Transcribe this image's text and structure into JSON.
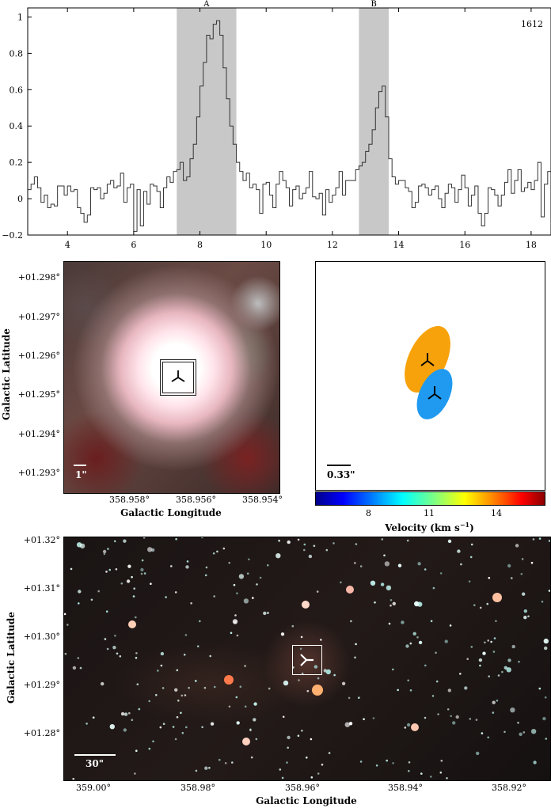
{
  "spectrum": {
    "corner_label": "1612",
    "regions": [
      {
        "label": "A",
        "x0": 7.3,
        "x1": 9.1
      },
      {
        "label": "B",
        "x0": 12.8,
        "x1": 13.7
      }
    ],
    "xlim": [
      2.8,
      18.6
    ],
    "ylim": [
      -0.2,
      1.05
    ],
    "x_ticks": [
      "4",
      "6",
      "8",
      "10",
      "12",
      "14",
      "16",
      "18"
    ],
    "y_ticks": [
      "1",
      "0.8",
      "0.6",
      "0.4",
      "0.2",
      "0",
      "−0.2"
    ]
  },
  "chart_data": {
    "type": "line",
    "series": [
      {
        "x": [
          2.8,
          2.9,
          3.0,
          3.1,
          3.2,
          3.3,
          3.4,
          3.5,
          3.6,
          3.7,
          3.8,
          3.9,
          4.0,
          4.1,
          4.2,
          4.3,
          4.4,
          4.5,
          4.6,
          4.7,
          4.8,
          4.9,
          5.0,
          5.1,
          5.2,
          5.3,
          5.4,
          5.5,
          5.6,
          5.7,
          5.8,
          5.9,
          6.0,
          6.1,
          6.2,
          6.3,
          6.4,
          6.5,
          6.6,
          6.7,
          6.8,
          6.9,
          7.0,
          7.1,
          7.2,
          7.3,
          7.4,
          7.5,
          7.6,
          7.7,
          7.8,
          7.9,
          8.0,
          8.1,
          8.2,
          8.3,
          8.4,
          8.5,
          8.6,
          8.7,
          8.8,
          8.9,
          9.0,
          9.1,
          9.2,
          9.3,
          9.4,
          9.5,
          9.6,
          9.7,
          9.8,
          9.9,
          10.0,
          10.1,
          10.2,
          10.3,
          10.4,
          10.5,
          10.6,
          10.7,
          10.8,
          10.9,
          11.0,
          11.1,
          11.2,
          11.3,
          11.4,
          11.5,
          11.6,
          11.7,
          11.8,
          11.9,
          12.0,
          12.1,
          12.2,
          12.3,
          12.4,
          12.5,
          12.6,
          12.7,
          12.8,
          12.9,
          13.0,
          13.1,
          13.2,
          13.3,
          13.4,
          13.5,
          13.6,
          13.7,
          13.8,
          13.9,
          14.0,
          14.1,
          14.2,
          14.3,
          14.4,
          14.5,
          14.6,
          14.7,
          14.8,
          14.9,
          15.0,
          15.1,
          15.2,
          15.3,
          15.4,
          15.5,
          15.6,
          15.7,
          15.8,
          15.9,
          16.0,
          16.1,
          16.2,
          16.3,
          16.4,
          16.5,
          16.6,
          16.7,
          16.8,
          16.9,
          17.0,
          17.1,
          17.2,
          17.3,
          17.4,
          17.5,
          17.6,
          17.7,
          17.8,
          17.9,
          18.0,
          18.1,
          18.2,
          18.3,
          18.4,
          18.5
        ],
        "y": [
          0.05,
          0.08,
          0.12,
          0.06,
          -0.02,
          0.02,
          -0.05,
          -0.03,
          -0.04,
          0.07,
          0.07,
          0.02,
          0.07,
          0.04,
          0.05,
          -0.05,
          -0.08,
          -0.13,
          -0.09,
          0.06,
          0.05,
          0.06,
          0.0,
          0.03,
          0.08,
          0.1,
          0.06,
          0.07,
          0.14,
          -0.02,
          0.06,
          0.08,
          -0.18,
          0.05,
          -0.15,
          0.04,
          -0.03,
          0.08,
          0.07,
          0.04,
          -0.05,
          0.06,
          0.12,
          0.09,
          0.15,
          0.16,
          0.2,
          0.1,
          0.12,
          0.22,
          0.3,
          0.45,
          0.62,
          0.75,
          0.9,
          0.88,
          0.96,
          0.98,
          0.9,
          0.72,
          0.55,
          0.4,
          0.3,
          0.2,
          0.15,
          0.1,
          0.14,
          0.06,
          0.08,
          0.05,
          -0.08,
          0.08,
          0.09,
          0.02,
          -0.05,
          0.08,
          0.15,
          0.1,
          0.06,
          -0.04,
          0.05,
          0.07,
          0.0,
          0.03,
          0.06,
          0.15,
          0.01,
          0.0,
          0.03,
          -0.09,
          0.05,
          -0.02,
          0.02,
          0.06,
          0.15,
          0.02,
          0.1,
          0.1,
          0.1,
          0.16,
          0.18,
          0.2,
          0.26,
          0.3,
          0.38,
          0.5,
          0.59,
          0.62,
          0.45,
          0.22,
          0.12,
          0.08,
          0.1,
          0.1,
          0.06,
          0.04,
          -0.05,
          -0.02,
          0.07,
          0.08,
          0.06,
          0.02,
          0.05,
          0.07,
          0.0,
          -0.05,
          0.03,
          0.08,
          0.06,
          -0.02,
          0.05,
          0.13,
          0.06,
          -0.04,
          0.02,
          0.07,
          -0.08,
          -0.15,
          -0.08,
          0.06,
          0.05,
          0.02,
          -0.04,
          0.02,
          0.09,
          0.16,
          0.03,
          0.1,
          0.16,
          0.04,
          0.06,
          0.09,
          0.05,
          0.1,
          0.2,
          -0.1,
          0.08,
          0.15
        ]
      }
    ]
  },
  "middle_left": {
    "y_axis_label": "Galactic Latitude",
    "x_axis_label": "Galactic Longitude",
    "y_ticks": [
      "+01.298°",
      "+01.297°",
      "+01.296°",
      "+01.295°",
      "+01.294°",
      "+01.293°"
    ],
    "x_ticks": [
      "358.958°",
      "358.956°",
      "358.954°"
    ],
    "scale_label": "1\""
  },
  "middle_right": {
    "scale_label": "0.33\"",
    "colorbar_ticks": [
      "8",
      "11",
      "14"
    ],
    "colorbar_label": "Velocity (km s",
    "colorbar_sup": "−1",
    "colorbar_close": ")",
    "ellipse_colors": [
      "#f7a20a",
      "#1f9af0"
    ]
  },
  "bottom": {
    "y_axis_label": "Galactic Latitude",
    "x_axis_label": "Galactic Longitude",
    "y_ticks": [
      "+01.32°",
      "+01.31°",
      "+01.30°",
      "+01.29°",
      "+01.28°"
    ],
    "x_ticks": [
      "359.00°",
      "358.98°",
      "358.96°",
      "358.94°",
      "358.92°"
    ],
    "scale_label": "30\""
  }
}
